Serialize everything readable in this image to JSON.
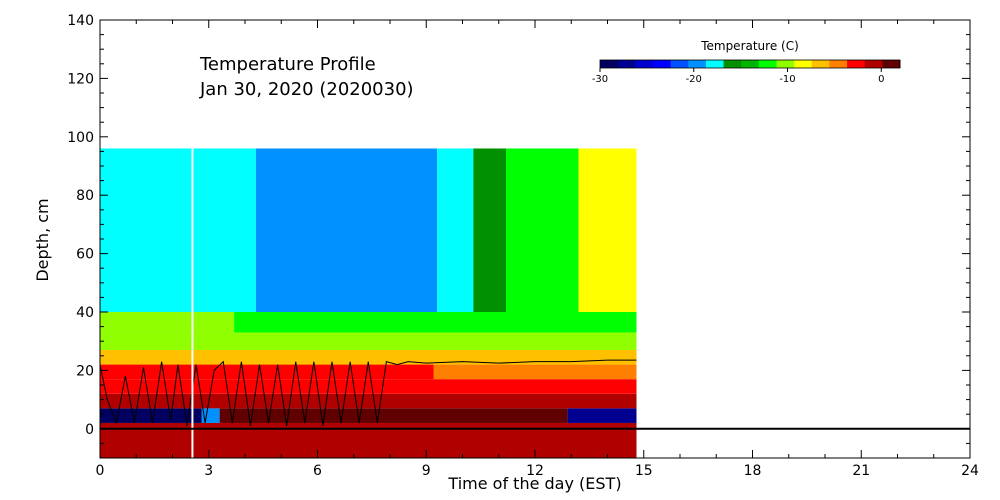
{
  "chart_data": {
    "type": "heatmap",
    "title": "Temperature Profile",
    "subtitle": "Jan 30, 2020 (2020030)",
    "xlabel": "Time of the day (EST)",
    "ylabel": "Depth, cm",
    "xlim": [
      0,
      24
    ],
    "ylim": [
      -10,
      140
    ],
    "x_ticks": [
      "0",
      "3",
      "6",
      "9",
      "12",
      "15",
      "18",
      "21",
      "24"
    ],
    "y_ticks": [
      "0",
      "20",
      "40",
      "60",
      "80",
      "100",
      "120",
      "140"
    ],
    "colorbar": {
      "label": "Temperature (C)",
      "range": [
        -30,
        2
      ],
      "ticks": [
        "-30",
        "-20",
        "-10",
        "0"
      ],
      "colors": [
        "#000060",
        "#000090",
        "#0000d0",
        "#0000ff",
        "#0050ff",
        "#0090ff",
        "#00ffff",
        "#009000",
        "#00b400",
        "#00ff00",
        "#90ff00",
        "#ffff00",
        "#ffc000",
        "#ff8000",
        "#ff0000",
        "#b00000",
        "#600000"
      ]
    },
    "data_end_hour": 14.8,
    "marker_line_hour": 2.55,
    "zero_line_depth": 0,
    "layers": [
      {
        "depth": [
          -10,
          0
        ],
        "segments": [
          [
            0,
            14.8,
            -0.2
          ]
        ]
      },
      {
        "depth": [
          0,
          2
        ],
        "segments": [
          [
            0,
            8,
            -0.5
          ],
          [
            8,
            14.8,
            -1.5
          ]
        ]
      },
      {
        "depth": [
          2,
          7
        ],
        "segments": [
          [
            0,
            2.8,
            -29
          ],
          [
            2.8,
            3.3,
            -20
          ],
          [
            3.3,
            12.9,
            0.5
          ],
          [
            12.9,
            14.8,
            -28
          ]
        ]
      },
      {
        "depth": [
          7,
          12
        ],
        "segments": [
          [
            0,
            14.8,
            -1.5
          ]
        ]
      },
      {
        "depth": [
          12,
          17
        ],
        "segments": [
          [
            0,
            14.8,
            -2
          ]
        ]
      },
      {
        "depth": [
          17,
          22
        ],
        "segments": [
          [
            0,
            9.2,
            -3
          ],
          [
            9.2,
            14.8,
            -4
          ]
        ]
      },
      {
        "depth": [
          22,
          27
        ],
        "segments": [
          [
            0,
            14.8,
            -6
          ]
        ]
      },
      {
        "depth": [
          27,
          33
        ],
        "segments": [
          [
            0,
            14.8,
            -10
          ]
        ]
      },
      {
        "depth": [
          33,
          40
        ],
        "segments": [
          [
            0,
            3.7,
            -10
          ],
          [
            3.7,
            14.8,
            -12
          ]
        ]
      },
      {
        "depth": [
          40,
          96
        ],
        "segments": [
          [
            0,
            4.3,
            -17
          ],
          [
            4.3,
            9.3,
            -20
          ],
          [
            9.3,
            10.3,
            -17
          ],
          [
            10.3,
            11.2,
            -15
          ],
          [
            11.2,
            13.2,
            -12
          ],
          [
            13.2,
            14.8,
            -8
          ]
        ]
      }
    ],
    "snow_line": {
      "x": [
        0,
        0.2,
        0.45,
        0.7,
        0.95,
        1.2,
        1.45,
        1.7,
        1.95,
        2.15,
        2.4,
        2.65,
        2.9,
        3.15,
        3.4,
        3.65,
        3.9,
        4.15,
        4.4,
        4.65,
        4.9,
        5.15,
        5.4,
        5.65,
        5.9,
        6.15,
        6.4,
        6.65,
        6.9,
        7.15,
        7.4,
        7.65,
        7.9,
        8.2,
        8.5,
        9,
        10,
        11,
        12,
        13,
        14,
        14.8
      ],
      "y": [
        22,
        10,
        2,
        18,
        2,
        21,
        2,
        23,
        3,
        22,
        1,
        22,
        2,
        20,
        23,
        2,
        23,
        1,
        22,
        2,
        22,
        1,
        23,
        2,
        23,
        1,
        23,
        2,
        23,
        2,
        23,
        2,
        23,
        22,
        23,
        22.5,
        23,
        22.5,
        23,
        23,
        23.5,
        23.5
      ]
    }
  }
}
